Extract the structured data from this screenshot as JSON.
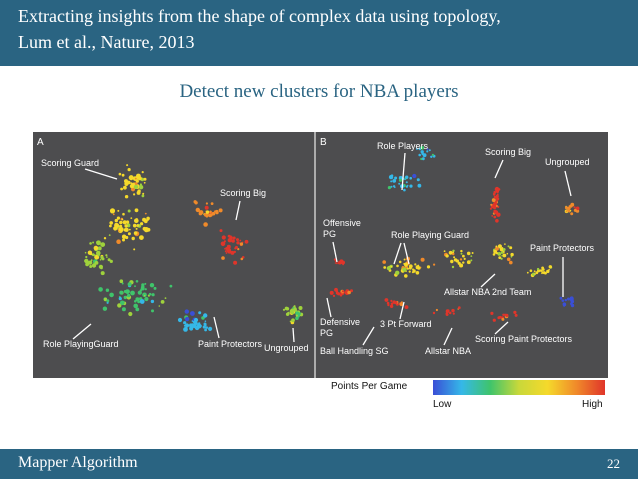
{
  "header": {
    "title_line1": "Extracting insights from the shape of complex data using topology,",
    "title_line2": "Lum et al., Nature, 2013"
  },
  "subtitle": "Detect new clusters for NBA players",
  "panel_a": {
    "letter": "A",
    "labels": {
      "scoring_guard": "Scoring Guard",
      "scoring_big": "Scoring Big",
      "role_playing_guard": "Role PlayingGuard",
      "paint_protectors": "Paint Protectors",
      "ungrouped": "Ungrouped"
    }
  },
  "panel_b": {
    "letter": "B",
    "labels": {
      "role_players": "Role Players",
      "scoring_big": "Scoring Big",
      "ungrouped": "Ungrouped",
      "offensive": "Offensive",
      "pg1": "PG",
      "role_playing_guard": "Role Playing Guard",
      "paint_protectors": "Paint Protectors",
      "allstar_2nd": "Allstar NBA 2nd Team",
      "defensive": "Defensive",
      "pg2": "PG",
      "three_pt_forward": "3 Pt Forward",
      "scoring_paint_protectors": "Scoring Paint Protectors",
      "ball_handling_sg": "Ball Handling SG",
      "allstar_nba": "Allstar NBA"
    }
  },
  "colorbar": {
    "title": "Points Per Game",
    "low": "Low",
    "high": "High",
    "colors": [
      "#3a4fd6",
      "#35b8e8",
      "#3fc46b",
      "#c9d83a",
      "#f5d92b",
      "#f08a2a",
      "#e0352a"
    ]
  },
  "footer": {
    "left": "Mapper Algorithm",
    "page": "22"
  },
  "colors": {
    "brand": "#2a6482",
    "panel_bg": "#4d4d4f",
    "divider": "#cccccc"
  }
}
